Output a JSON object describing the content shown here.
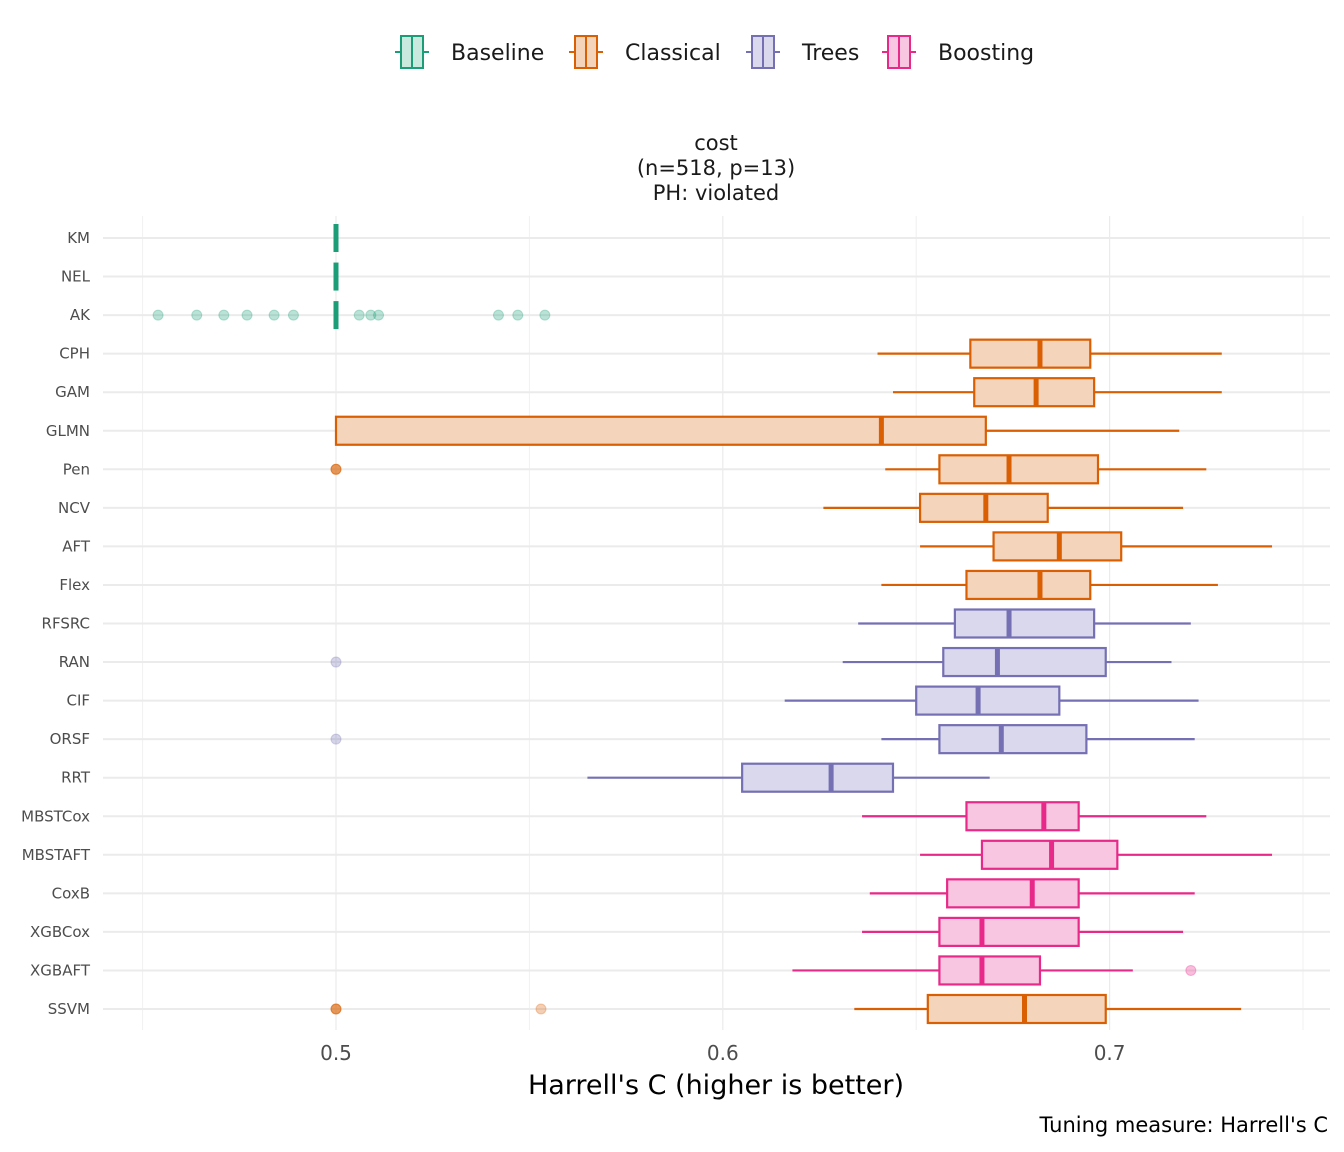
{
  "chart_data": {
    "type": "boxplot",
    "title_lines": [
      "cost",
      "(n=518, p=13)",
      "PH: violated"
    ],
    "xlabel": "Harrell's C (higher is better)",
    "caption": "Tuning measure: Harrell's C",
    "xlim": [
      0.445,
      0.752
    ],
    "xticks": [
      0.5,
      0.6,
      0.7
    ],
    "xtick_labels": [
      "0.5",
      "0.6",
      "0.7"
    ],
    "legend": [
      {
        "name": "Baseline",
        "color": "#1b9e77"
      },
      {
        "name": "Classical",
        "color": "#d95f02"
      },
      {
        "name": "Trees",
        "color": "#7570b3"
      },
      {
        "name": "Boosting",
        "color": "#e7298a"
      }
    ],
    "groups": {
      "Baseline": {
        "color": "#1b9e77",
        "fill": "#c9e8de"
      },
      "Classical": {
        "color": "#d95f02",
        "fill": "#f5d4bc"
      },
      "Trees": {
        "color": "#7570b3",
        "fill": "#d9d8ec"
      },
      "Boosting": {
        "color": "#e7298a",
        "fill": "#f9c6e1"
      }
    },
    "boxes": [
      {
        "label": "KM",
        "group": "Baseline",
        "whisker_low": 0.5,
        "q1": 0.5,
        "median": 0.5,
        "q3": 0.5,
        "whisker_high": 0.5,
        "outliers": []
      },
      {
        "label": "NEL",
        "group": "Baseline",
        "whisker_low": 0.5,
        "q1": 0.5,
        "median": 0.5,
        "q3": 0.5,
        "whisker_high": 0.5,
        "outliers": []
      },
      {
        "label": "AK",
        "group": "Baseline",
        "whisker_low": 0.5,
        "q1": 0.5,
        "median": 0.5,
        "q3": 0.5,
        "whisker_high": 0.5,
        "outliers": [
          0.454,
          0.464,
          0.471,
          0.477,
          0.484,
          0.489,
          0.506,
          0.509,
          0.511,
          0.542,
          0.547,
          0.554
        ]
      },
      {
        "label": "CPH",
        "group": "Classical",
        "whisker_low": 0.64,
        "q1": 0.664,
        "median": 0.682,
        "q3": 0.695,
        "whisker_high": 0.729,
        "outliers": []
      },
      {
        "label": "GAM",
        "group": "Classical",
        "whisker_low": 0.644,
        "q1": 0.665,
        "median": 0.681,
        "q3": 0.696,
        "whisker_high": 0.729,
        "outliers": []
      },
      {
        "label": "GLMN",
        "group": "Classical",
        "whisker_low": 0.5,
        "q1": 0.5,
        "median": 0.641,
        "q3": 0.668,
        "whisker_high": 0.718,
        "outliers": []
      },
      {
        "label": "Pen",
        "group": "Classical",
        "whisker_low": 0.642,
        "q1": 0.656,
        "median": 0.674,
        "q3": 0.697,
        "whisker_high": 0.725,
        "outliers": [
          0.5
        ]
      },
      {
        "label": "NCV",
        "group": "Classical",
        "whisker_low": 0.626,
        "q1": 0.651,
        "median": 0.668,
        "q3": 0.684,
        "whisker_high": 0.719,
        "outliers": []
      },
      {
        "label": "AFT",
        "group": "Classical",
        "whisker_low": 0.651,
        "q1": 0.67,
        "median": 0.687,
        "q3": 0.703,
        "whisker_high": 0.742,
        "outliers": []
      },
      {
        "label": "Flex",
        "group": "Classical",
        "whisker_low": 0.641,
        "q1": 0.663,
        "median": 0.682,
        "q3": 0.695,
        "whisker_high": 0.728,
        "outliers": []
      },
      {
        "label": "RFSRC",
        "group": "Trees",
        "whisker_low": 0.635,
        "q1": 0.66,
        "median": 0.674,
        "q3": 0.696,
        "whisker_high": 0.721,
        "outliers": []
      },
      {
        "label": "RAN",
        "group": "Trees",
        "whisker_low": 0.631,
        "q1": 0.657,
        "median": 0.671,
        "q3": 0.699,
        "whisker_high": 0.716,
        "outliers": [
          0.5
        ]
      },
      {
        "label": "CIF",
        "group": "Trees",
        "whisker_low": 0.616,
        "q1": 0.65,
        "median": 0.666,
        "q3": 0.687,
        "whisker_high": 0.723,
        "outliers": []
      },
      {
        "label": "ORSF",
        "group": "Trees",
        "whisker_low": 0.641,
        "q1": 0.656,
        "median": 0.672,
        "q3": 0.694,
        "whisker_high": 0.722,
        "outliers": [
          0.5
        ]
      },
      {
        "label": "RRT",
        "group": "Trees",
        "whisker_low": 0.565,
        "q1": 0.605,
        "median": 0.628,
        "q3": 0.644,
        "whisker_high": 0.669,
        "outliers": []
      },
      {
        "label": "MBSTCox",
        "group": "Boosting",
        "whisker_low": 0.636,
        "q1": 0.663,
        "median": 0.683,
        "q3": 0.692,
        "whisker_high": 0.725,
        "outliers": []
      },
      {
        "label": "MBSTAFT",
        "group": "Boosting",
        "whisker_low": 0.651,
        "q1": 0.667,
        "median": 0.685,
        "q3": 0.702,
        "whisker_high": 0.742,
        "outliers": []
      },
      {
        "label": "CoxB",
        "group": "Boosting",
        "whisker_low": 0.638,
        "q1": 0.658,
        "median": 0.68,
        "q3": 0.692,
        "whisker_high": 0.722,
        "outliers": []
      },
      {
        "label": "XGBCox",
        "group": "Boosting",
        "whisker_low": 0.636,
        "q1": 0.656,
        "median": 0.667,
        "q3": 0.692,
        "whisker_high": 0.719,
        "outliers": []
      },
      {
        "label": "XGBAFT",
        "group": "Boosting",
        "whisker_low": 0.618,
        "q1": 0.656,
        "median": 0.667,
        "q3": 0.682,
        "whisker_high": 0.706,
        "outliers": [
          0.721
        ]
      },
      {
        "label": "SSVM",
        "group": "Classical",
        "whisker_low": 0.634,
        "q1": 0.653,
        "median": 0.678,
        "q3": 0.699,
        "whisker_high": 0.734,
        "outliers": [
          0.5,
          0.553
        ]
      }
    ]
  }
}
